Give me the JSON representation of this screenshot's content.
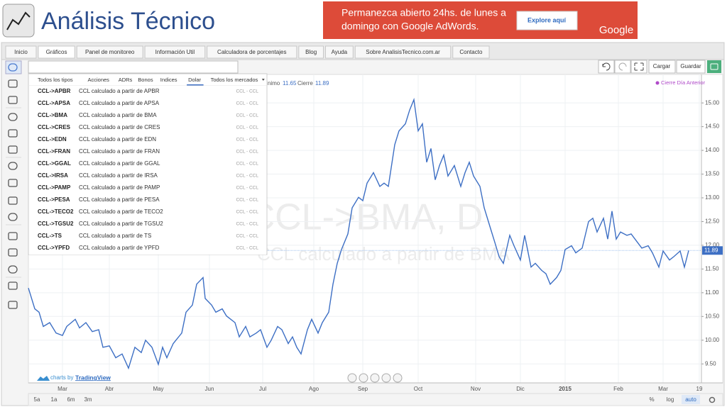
{
  "header": {
    "title": "Análisis Técnico",
    "ad_line_1": "Permanezca abierto 24hs. de lunes a",
    "ad_line_2": "domingo con Google AdWords.",
    "ad_button": "Explore aquí",
    "ad_brand": "Google"
  },
  "nav": [
    "Inicio",
    "Gráficos",
    "Panel de monitoreo",
    "Información Util",
    "Calculadora de porcentajes",
    "Blog",
    "Ayuda",
    "Sobre AnalisisTecnico.com.ar",
    "Contacto"
  ],
  "toolbar": {
    "load": "Cargar",
    "save": "Guardar"
  },
  "search": {
    "filters": [
      "Todos los tipos",
      "Acciones",
      "ADRs",
      "Bonos",
      "Indices",
      "Dolar",
      "Todos los mercados"
    ],
    "results": [
      {
        "symbol": "CCL->APBR",
        "description": "CCL calculado a partir de APBR",
        "exchange": "CCL - CCL"
      },
      {
        "symbol": "CCL->APSA",
        "description": "CCL calculado a partir de APSA",
        "exchange": "CCL - CCL"
      },
      {
        "symbol": "CCL->BMA",
        "description": "CCL calculado a partir de BMA",
        "exchange": "CCL - CCL"
      },
      {
        "symbol": "CCL->CRES",
        "description": "CCL calculado a partir de CRES",
        "exchange": "CCL - CCL"
      },
      {
        "symbol": "CCL->EDN",
        "description": "CCL calculado a partir de EDN",
        "exchange": "CCL - CCL"
      },
      {
        "symbol": "CCL->FRAN",
        "description": "CCL calculado a partir de FRAN",
        "exchange": "CCL - CCL"
      },
      {
        "symbol": "CCL->GGAL",
        "description": "CCL calculado a partir de GGAL",
        "exchange": "CCL - CCL"
      },
      {
        "symbol": "CCL->IRSA",
        "description": "CCL calculado a partir de IRSA",
        "exchange": "CCL - CCL"
      },
      {
        "symbol": "CCL->PAMP",
        "description": "CCL calculado a partir de PAMP",
        "exchange": "CCL - CCL"
      },
      {
        "symbol": "CCL->PESA",
        "description": "CCL calculado a partir de PESA",
        "exchange": "CCL - CCL"
      },
      {
        "symbol": "CCL->TECO2",
        "description": "CCL calculado a partir de TECO2",
        "exchange": "CCL - CCL"
      },
      {
        "symbol": "CCL->TGSU2",
        "description": "CCL calculado a partir de TGSU2",
        "exchange": "CCL - CCL"
      },
      {
        "symbol": "CCL->TS",
        "description": "CCL calculado a partir de TS",
        "exchange": "CCL - CCL"
      },
      {
        "symbol": "CCL->YPFD",
        "description": "CCL calculado a partir de YPFD",
        "exchange": "CCL - CCL"
      }
    ]
  },
  "chart_data": {
    "type": "line",
    "watermark": "CCL->BMA, D",
    "watermark_sub": "CCL calculado a partir de BMA",
    "legend_low_label": "Mínimo",
    "legend_low": 11.65,
    "legend_close_label": "Cierre",
    "legend_close": 11.89,
    "indicator": "Cierre Día Anterior",
    "color": "#3d6fc4",
    "x": [
      0,
      3,
      5,
      7,
      10,
      13,
      16,
      18,
      22,
      24,
      27,
      30,
      33,
      35,
      38,
      41,
      44,
      47,
      50,
      53,
      55,
      58,
      61,
      63,
      65,
      68,
      72,
      74,
      77,
      79,
      82,
      83,
      86,
      88,
      91,
      93,
      97,
      99,
      102,
      104,
      107,
      109,
      112,
      114,
      117,
      119,
      122,
      124,
      126,
      128,
      131,
      133,
      136,
      138,
      141,
      143,
      145,
      147,
      150,
      152,
      155,
      157,
      159,
      162,
      165,
      167,
      169,
      172,
      174,
      177,
      179,
      181,
      183,
      185,
      187,
      189,
      191,
      193,
      195,
      197,
      200,
      203,
      205,
      207,
      209,
      212,
      214,
      217,
      219,
      221,
      223,
      226,
      228,
      231,
      233,
      236,
      238,
      241,
      243,
      245,
      248,
      250,
      252,
      255,
      257,
      260,
      263,
      265,
      267,
      270,
      272,
      274,
      276,
      278,
      281,
      283,
      286,
      288,
      291,
      293,
      296,
      298,
      301,
      303,
      306,
      308,
      310
    ],
    "values": [
      11.1,
      10.66,
      10.59,
      10.29,
      10.37,
      10.15,
      10.1,
      10.29,
      10.44,
      10.26,
      10.37,
      10.18,
      10.22,
      9.85,
      9.88,
      9.63,
      9.71,
      9.41,
      9.85,
      9.74,
      10.0,
      9.85,
      9.49,
      9.85,
      9.63,
      9.93,
      10.15,
      10.59,
      10.74,
      11.18,
      11.32,
      10.88,
      10.74,
      10.59,
      10.66,
      10.51,
      10.37,
      10.07,
      10.29,
      10.07,
      10.15,
      10.22,
      9.85,
      10.0,
      10.29,
      10.22,
      9.93,
      10.07,
      9.85,
      9.71,
      10.22,
      10.44,
      10.15,
      10.37,
      10.59,
      11.18,
      11.62,
      11.91,
      12.24,
      12.79,
      13.01,
      12.94,
      13.31,
      13.53,
      13.24,
      13.31,
      13.24,
      14.12,
      14.41,
      14.56,
      14.85,
      15.07,
      14.41,
      14.56,
      13.75,
      14.04,
      13.38,
      13.68,
      13.9,
      13.46,
      13.68,
      13.24,
      13.53,
      13.75,
      13.46,
      13.24,
      12.79,
      12.35,
      12.06,
      11.76,
      11.62,
      12.21,
      11.99,
      11.69,
      12.21,
      11.54,
      11.62,
      11.47,
      11.4,
      11.18,
      11.32,
      11.47,
      11.91,
      11.99,
      11.84,
      11.94,
      12.5,
      12.57,
      12.28,
      12.57,
      12.13,
      12.72,
      12.13,
      12.28,
      12.21,
      12.24,
      12.06,
      11.94,
      11.99,
      11.84,
      11.54,
      11.88,
      11.69,
      11.76,
      11.88,
      11.54,
      11.89
    ],
    "xlim": [
      0,
      316
    ],
    "xticks": [
      {
        "value": 16,
        "label": "Mar"
      },
      {
        "value": 38,
        "label": "Abr"
      },
      {
        "value": 61,
        "label": "May"
      },
      {
        "value": 85,
        "label": "Jun"
      },
      {
        "value": 110,
        "label": "Jul"
      },
      {
        "value": 134,
        "label": "Ago"
      },
      {
        "value": 157,
        "label": "Sep"
      },
      {
        "value": 183,
        "label": "Oct"
      },
      {
        "value": 210,
        "label": "Nov"
      },
      {
        "value": 231,
        "label": "Dic"
      },
      {
        "value": 252,
        "label": "2015"
      },
      {
        "value": 277,
        "label": "Feb"
      },
      {
        "value": 298,
        "label": "Mar"
      },
      {
        "value": 315,
        "label": "19"
      }
    ],
    "ylim": [
      9.1,
      15.6
    ],
    "yticks": [
      {
        "value": 9.5,
        "label": "9.50"
      },
      {
        "value": 10,
        "label": "10.00"
      },
      {
        "value": 10.5,
        "label": "10.50"
      },
      {
        "value": 11,
        "label": "11.00"
      },
      {
        "value": 11.5,
        "label": "11.50"
      },
      {
        "value": 12,
        "label": "12.00"
      },
      {
        "value": 12.5,
        "label": "12.50"
      },
      {
        "value": 13,
        "label": "13.00"
      },
      {
        "value": 13.5,
        "label": "13.50"
      },
      {
        "value": 14,
        "label": "14.00"
      },
      {
        "value": 14.5,
        "label": "14.50"
      },
      {
        "value": 15,
        "label": "15.00"
      }
    ],
    "grid": true,
    "range_buttons": [
      "5a",
      "1a",
      "6m",
      "3m"
    ],
    "scale_buttons": [
      "%",
      "log",
      "auto"
    ],
    "credit_prefix": "charts by",
    "credit_brand": "TradingView"
  }
}
